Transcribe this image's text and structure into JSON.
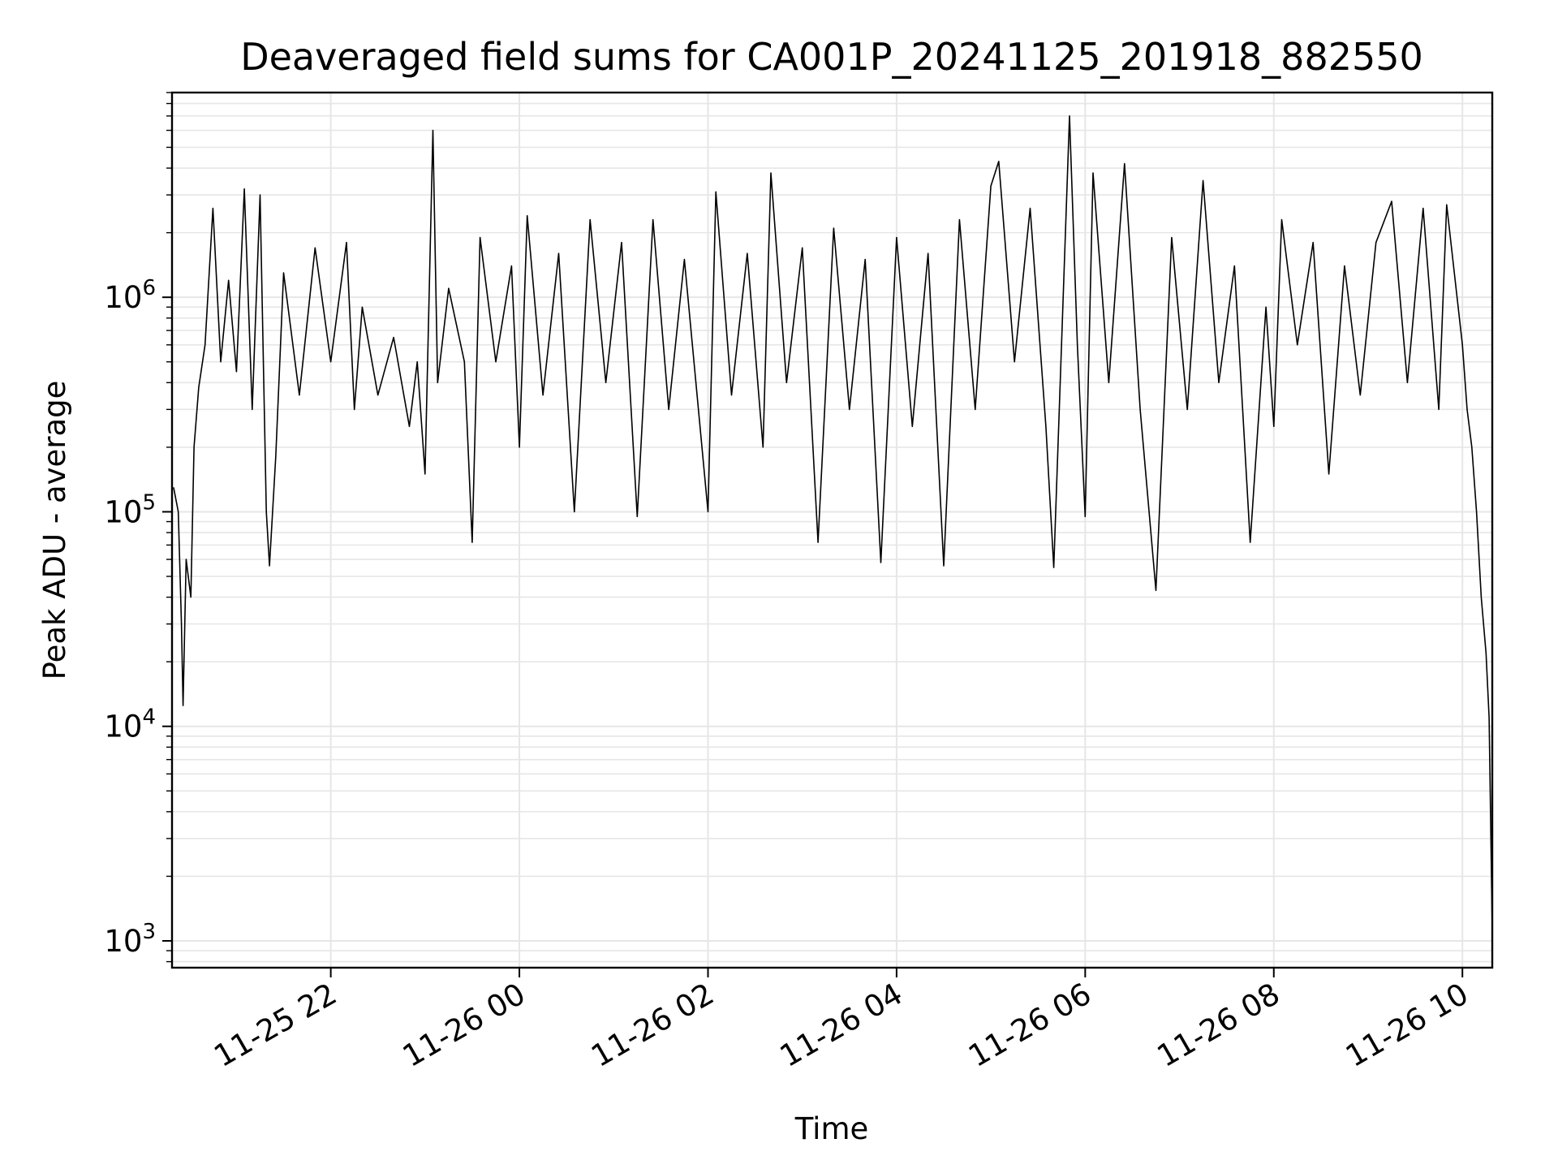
{
  "chart_data": {
    "type": "line",
    "title": "Deaveraged field sums for CA001P_20241125_201918_882550",
    "xlabel": "Time",
    "ylabel": "Peak ADU - average",
    "yscale": "log",
    "ylim": [
      750,
      9000000
    ],
    "xlim": [
      "2024-11-25 20:19",
      "2024-11-26 10:19"
    ],
    "grid": true,
    "x_ticks": [
      {
        "t": "2024-11-25 22:00",
        "label": "11-25 22"
      },
      {
        "t": "2024-11-26 00:00",
        "label": "11-26 00"
      },
      {
        "t": "2024-11-26 02:00",
        "label": "11-26 02"
      },
      {
        "t": "2024-11-26 04:00",
        "label": "11-26 04"
      },
      {
        "t": "2024-11-26 06:00",
        "label": "11-26 06"
      },
      {
        "t": "2024-11-26 08:00",
        "label": "11-26 08"
      },
      {
        "t": "2024-11-26 10:00",
        "label": "11-26 10"
      }
    ],
    "y_ticks": [
      {
        "value": 1000,
        "base": "10",
        "exp": "3"
      },
      {
        "value": 10000,
        "base": "10",
        "exp": "4"
      },
      {
        "value": 100000,
        "base": "10",
        "exp": "5"
      },
      {
        "value": 1000000,
        "base": "10",
        "exp": "6"
      }
    ],
    "series": [
      {
        "color": "#000000",
        "points": [
          [
            "2024-11-25 20:20",
            130000
          ],
          [
            "2024-11-25 20:23",
            100000
          ],
          [
            "2024-11-25 20:25",
            30000
          ],
          [
            "2024-11-25 20:26",
            12500
          ],
          [
            "2024-11-25 20:28",
            60000
          ],
          [
            "2024-11-25 20:31",
            40000
          ],
          [
            "2024-11-25 20:33",
            200000
          ],
          [
            "2024-11-25 20:36",
            380000
          ],
          [
            "2024-11-25 20:40",
            600000
          ],
          [
            "2024-11-25 20:45",
            2600000
          ],
          [
            "2024-11-25 20:50",
            500000
          ],
          [
            "2024-11-25 20:55",
            1200000
          ],
          [
            "2024-11-25 21:00",
            450000
          ],
          [
            "2024-11-25 21:05",
            3200000
          ],
          [
            "2024-11-25 21:10",
            300000
          ],
          [
            "2024-11-25 21:15",
            3000000
          ],
          [
            "2024-11-25 21:19",
            100000
          ],
          [
            "2024-11-25 21:21",
            56000
          ],
          [
            "2024-11-25 21:25",
            180000
          ],
          [
            "2024-11-25 21:30",
            1300000
          ],
          [
            "2024-11-25 21:40",
            350000
          ],
          [
            "2024-11-25 21:50",
            1700000
          ],
          [
            "2024-11-25 22:00",
            500000
          ],
          [
            "2024-11-25 22:10",
            1800000
          ],
          [
            "2024-11-25 22:15",
            300000
          ],
          [
            "2024-11-25 22:20",
            900000
          ],
          [
            "2024-11-25 22:30",
            350000
          ],
          [
            "2024-11-25 22:40",
            650000
          ],
          [
            "2024-11-25 22:50",
            250000
          ],
          [
            "2024-11-25 22:55",
            500000
          ],
          [
            "2024-11-25 23:00",
            150000
          ],
          [
            "2024-11-25 23:05",
            6000000
          ],
          [
            "2024-11-25 23:08",
            400000
          ],
          [
            "2024-11-25 23:15",
            1100000
          ],
          [
            "2024-11-25 23:25",
            500000
          ],
          [
            "2024-11-25 23:30",
            72000
          ],
          [
            "2024-11-25 23:35",
            1900000
          ],
          [
            "2024-11-25 23:45",
            500000
          ],
          [
            "2024-11-25 23:55",
            1400000
          ],
          [
            "2024-11-26 00:00",
            200000
          ],
          [
            "2024-11-26 00:05",
            2400000
          ],
          [
            "2024-11-26 00:15",
            350000
          ],
          [
            "2024-11-26 00:25",
            1600000
          ],
          [
            "2024-11-26 00:35",
            100000
          ],
          [
            "2024-11-26 00:45",
            2300000
          ],
          [
            "2024-11-26 00:55",
            400000
          ],
          [
            "2024-11-26 01:05",
            1800000
          ],
          [
            "2024-11-26 01:15",
            95000
          ],
          [
            "2024-11-26 01:25",
            2300000
          ],
          [
            "2024-11-26 01:35",
            300000
          ],
          [
            "2024-11-26 01:45",
            1500000
          ],
          [
            "2024-11-26 02:00",
            100000
          ],
          [
            "2024-11-26 02:05",
            3100000
          ],
          [
            "2024-11-26 02:15",
            350000
          ],
          [
            "2024-11-26 02:25",
            1600000
          ],
          [
            "2024-11-26 02:35",
            200000
          ],
          [
            "2024-11-26 02:40",
            3800000
          ],
          [
            "2024-11-26 02:50",
            400000
          ],
          [
            "2024-11-26 03:00",
            1700000
          ],
          [
            "2024-11-26 03:10",
            72000
          ],
          [
            "2024-11-26 03:20",
            2100000
          ],
          [
            "2024-11-26 03:30",
            300000
          ],
          [
            "2024-11-26 03:40",
            1500000
          ],
          [
            "2024-11-26 03:50",
            58000
          ],
          [
            "2024-11-26 04:00",
            1900000
          ],
          [
            "2024-11-26 04:10",
            250000
          ],
          [
            "2024-11-26 04:20",
            1600000
          ],
          [
            "2024-11-26 04:30",
            56000
          ],
          [
            "2024-11-26 04:40",
            2300000
          ],
          [
            "2024-11-26 04:50",
            300000
          ],
          [
            "2024-11-26 05:00",
            3300000
          ],
          [
            "2024-11-26 05:05",
            4300000
          ],
          [
            "2024-11-26 05:15",
            500000
          ],
          [
            "2024-11-26 05:25",
            2600000
          ],
          [
            "2024-11-26 05:35",
            250000
          ],
          [
            "2024-11-26 05:40",
            55000
          ],
          [
            "2024-11-26 05:50",
            7000000
          ],
          [
            "2024-11-26 05:55",
            600000
          ],
          [
            "2024-11-26 06:00",
            95000
          ],
          [
            "2024-11-26 06:05",
            3800000
          ],
          [
            "2024-11-26 06:15",
            400000
          ],
          [
            "2024-11-26 06:25",
            4200000
          ],
          [
            "2024-11-26 06:35",
            300000
          ],
          [
            "2024-11-26 06:45",
            43000
          ],
          [
            "2024-11-26 06:55",
            1900000
          ],
          [
            "2024-11-26 07:05",
            300000
          ],
          [
            "2024-11-26 07:15",
            3500000
          ],
          [
            "2024-11-26 07:25",
            400000
          ],
          [
            "2024-11-26 07:35",
            1400000
          ],
          [
            "2024-11-26 07:45",
            72000
          ],
          [
            "2024-11-26 07:55",
            900000
          ],
          [
            "2024-11-26 08:00",
            250000
          ],
          [
            "2024-11-26 08:05",
            2300000
          ],
          [
            "2024-11-26 08:15",
            600000
          ],
          [
            "2024-11-26 08:25",
            1800000
          ],
          [
            "2024-11-26 08:35",
            150000
          ],
          [
            "2024-11-26 08:45",
            1400000
          ],
          [
            "2024-11-26 08:55",
            350000
          ],
          [
            "2024-11-26 09:05",
            1800000
          ],
          [
            "2024-11-26 09:15",
            2800000
          ],
          [
            "2024-11-26 09:25",
            400000
          ],
          [
            "2024-11-26 09:35",
            2600000
          ],
          [
            "2024-11-26 09:45",
            300000
          ],
          [
            "2024-11-26 09:50",
            2700000
          ],
          [
            "2024-11-26 10:00",
            600000
          ],
          [
            "2024-11-26 10:03",
            300000
          ],
          [
            "2024-11-26 10:06",
            200000
          ],
          [
            "2024-11-26 10:09",
            100000
          ],
          [
            "2024-11-26 10:12",
            40000
          ],
          [
            "2024-11-26 10:15",
            22000
          ],
          [
            "2024-11-26 10:17",
            11000
          ],
          [
            "2024-11-26 10:19",
            1100
          ]
        ]
      }
    ]
  }
}
